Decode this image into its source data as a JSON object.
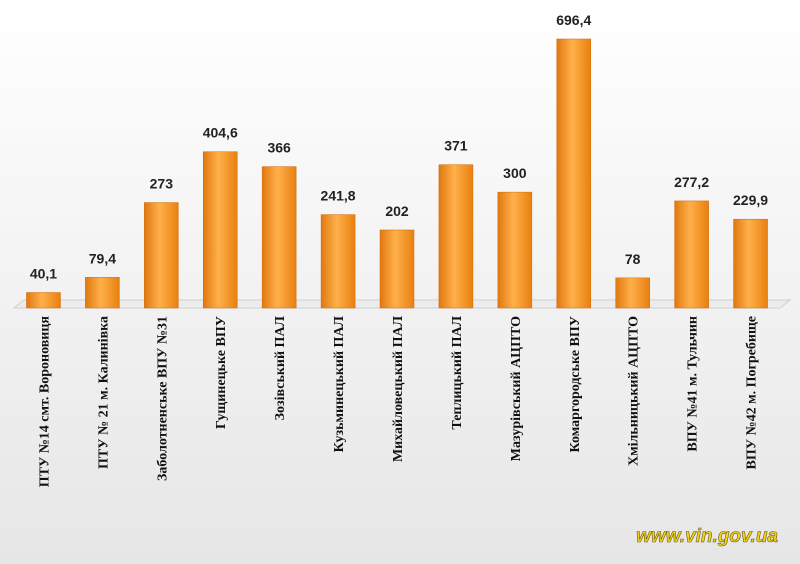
{
  "chart_data": {
    "type": "bar",
    "categories": [
      "ПТУ №14 смт. Вороновиця",
      "ПТУ № 21 м. Калинівка",
      "Заболотненське ВПУ №31",
      "Гущинецьке ВПУ",
      "Зозівський ПАЛ",
      "Кузьминецький ПАЛ",
      "Михайловецький ПАЛ",
      "Теплицький ПАЛ",
      "Мазурівський АЦПТО",
      "Комаргородське ВПУ",
      "Хмільницький АЦПТО",
      "ВПУ №41 м. Тульчин",
      "ВПУ №42 м. Погребище"
    ],
    "values": [
      40.1,
      79.4,
      273,
      404.6,
      366,
      241.8,
      202,
      371,
      300,
      696.4,
      78,
      277.2,
      229.9
    ],
    "value_labels": [
      "40,1",
      "79,4",
      "273",
      "404,6",
      "366",
      "241,8",
      "202",
      "371",
      "300",
      "696,4",
      "78",
      "277,2",
      "229,9"
    ],
    "color": "#f7931e",
    "watermark": "www.vin.gov.ua"
  }
}
